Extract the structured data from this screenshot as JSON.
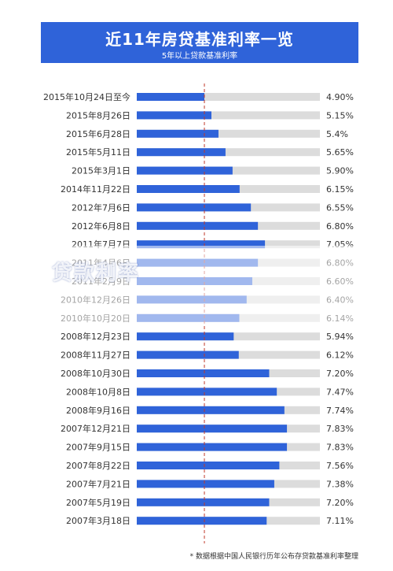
{
  "colors": {
    "accent": "#2f63d9",
    "track": "#dcdcdc",
    "guide": "#c0392b",
    "label": "#333333"
  },
  "footnote": "* 数据根据中国人民银行历年公布存贷款基准利率整理",
  "chart_data": {
    "type": "bar",
    "orientation": "horizontal",
    "title": "近11年房贷基准利率一览",
    "subtitle": "5年以上贷款基准利率",
    "xlim": [
      2.5,
      9.0
    ],
    "reference_line": 4.9,
    "categories": [
      "2015年10月24日至今",
      "2015年8月26日",
      "2015年6月28日",
      "2015年5月11日",
      "2015年3月1日",
      "2014年11月22日",
      "2012年7月6日",
      "2012年6月8日",
      "2011年7月7日",
      "2011年4月6日",
      "2011年2月9日",
      "2010年12月26日",
      "2010年10月20日",
      "2008年12月23日",
      "2008年11月27日",
      "2008年10月30日",
      "2008年10月8日",
      "2008年9月16日",
      "2007年12月21日",
      "2007年9月15日",
      "2007年8月22日",
      "2007年7月21日",
      "2007年5月19日",
      "2007年3月18日"
    ],
    "values": [
      4.9,
      5.15,
      5.4,
      5.65,
      5.9,
      6.15,
      6.55,
      6.8,
      7.05,
      6.8,
      6.6,
      6.4,
      6.14,
      5.94,
      6.12,
      7.2,
      7.47,
      7.74,
      7.83,
      7.83,
      7.56,
      7.38,
      7.2,
      7.11
    ],
    "value_labels": [
      "4.90%",
      "5.15%",
      "5.4%",
      "5.65%",
      "5.90%",
      "6.15%",
      "6.55%",
      "6.80%",
      "7.05%",
      "6.80%",
      "6.60%",
      "6.40%",
      "6.14%",
      "5.94%",
      "6.12%",
      "7.20%",
      "7.47%",
      "7.74%",
      "7.83%",
      "7.83%",
      "7.56%",
      "7.38%",
      "7.20%",
      "7.11%"
    ]
  },
  "watermark": "贷款利率"
}
